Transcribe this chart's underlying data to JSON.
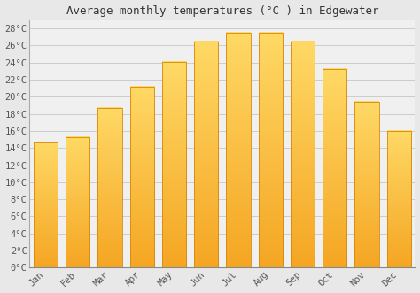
{
  "title": "Average monthly temperatures (°C ) in Edgewater",
  "months": [
    "Jan",
    "Feb",
    "Mar",
    "Apr",
    "May",
    "Jun",
    "Jul",
    "Aug",
    "Sep",
    "Oct",
    "Nov",
    "Dec"
  ],
  "values": [
    14.7,
    15.3,
    18.7,
    21.2,
    24.1,
    26.5,
    27.5,
    27.5,
    26.5,
    23.3,
    19.4,
    16.0
  ],
  "bar_color_bottom": "#F5A623",
  "bar_color_top": "#FFD966",
  "bar_edge_color": "#D4880A",
  "background_color": "#e8e8e8",
  "plot_bg_color": "#f0f0f0",
  "ylim": [
    0,
    29
  ],
  "yticks": [
    0,
    2,
    4,
    6,
    8,
    10,
    12,
    14,
    16,
    18,
    20,
    22,
    24,
    26,
    28
  ],
  "ytick_labels": [
    "0°C",
    "2°C",
    "4°C",
    "6°C",
    "8°C",
    "10°C",
    "12°C",
    "14°C",
    "16°C",
    "18°C",
    "20°C",
    "22°C",
    "24°C",
    "26°C",
    "28°C"
  ],
  "title_fontsize": 9,
  "tick_fontsize": 7.5,
  "grid_color": "#cccccc",
  "bar_width": 0.75
}
